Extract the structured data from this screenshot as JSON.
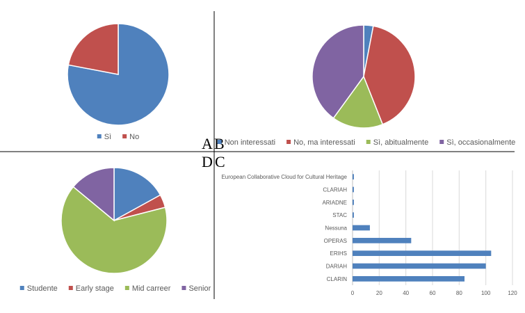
{
  "panel_letters": {
    "a": "A",
    "b": "B",
    "c": "C",
    "d": "D"
  },
  "chart_data": [
    {
      "panel": "A",
      "type": "pie",
      "title": "",
      "categories": [
        "Sì",
        "No"
      ],
      "values": [
        78,
        22
      ],
      "colors": [
        "#4F81BD",
        "#C0504D"
      ],
      "legend": "bottom"
    },
    {
      "panel": "B",
      "type": "pie",
      "title": "",
      "categories": [
        "Non interessati",
        "No, ma interessati",
        "Sì, abitualmente",
        "Sì, occasionalmente"
      ],
      "values": [
        3,
        41,
        16,
        40
      ],
      "colors": [
        "#4F81BD",
        "#C0504D",
        "#9BBB59",
        "#8064A2"
      ],
      "legend": "bottom"
    },
    {
      "panel": "C",
      "type": "pie",
      "title": "",
      "categories": [
        "Studente",
        "Early stage",
        "Mid carreer",
        "Senior"
      ],
      "values": [
        17,
        4,
        65,
        14
      ],
      "colors": [
        "#4F81BD",
        "#C0504D",
        "#9BBB59",
        "#8064A2"
      ],
      "legend": "bottom"
    },
    {
      "panel": "D",
      "type": "bar",
      "orientation": "horizontal",
      "title": "",
      "xlabel": "",
      "ylabel": "",
      "categories": [
        "European Collaborative Cloud for Cultural Heritage",
        "CLARIAH",
        "ARIADNE",
        "STAC",
        "Nessuna",
        "OPERAS",
        "ERIHS",
        "DARIAH",
        "CLARIN"
      ],
      "values": [
        1,
        1,
        1,
        1,
        13,
        44,
        104,
        100,
        84
      ],
      "xlim": [
        0,
        120
      ],
      "xticks": [
        "0",
        "20",
        "40",
        "60",
        "80",
        "100",
        "120"
      ],
      "grid": true,
      "color": "#4F81BD"
    }
  ]
}
